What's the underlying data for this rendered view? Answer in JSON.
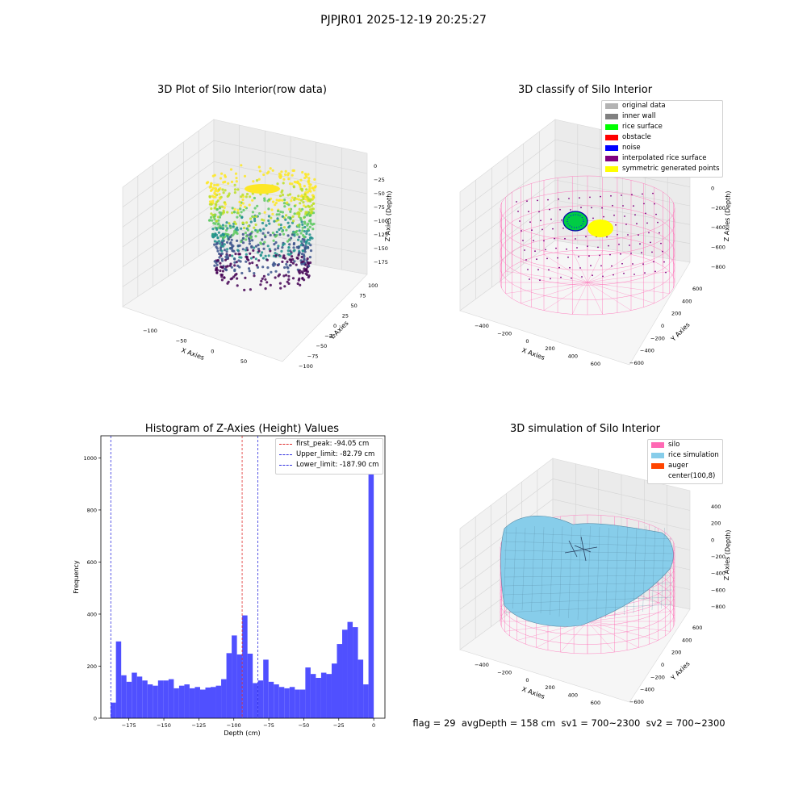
{
  "suptitle": "PJPJR01 2025-12-19 20:25:27",
  "footer": "flag = 29  avgDepth = 158 cm  sv1 = 700~2300  sv2 = 700~2300",
  "colors": {
    "hist_bar": "#5050ff",
    "first_peak": "#e03030",
    "limit": "#3030e0",
    "silo_wire": "#ff69b4",
    "rice_surface": "#87cdea",
    "original_data": "#b3b3b3",
    "inner_wall": "#808080",
    "rice_green": "#00ff00",
    "obstacle": "#ff0000",
    "noise": "#0000ff",
    "interp": "#800080",
    "symmetric": "#ffff00",
    "auger": "#ff4500"
  },
  "chart_data": [
    {
      "type": "scatter",
      "title": "3D Plot of Silo Interior(row data)",
      "xlabel": "X Axies",
      "ylabel": "Y Axies",
      "zlabel": "Z Axies (Depth)",
      "xticks": [
        "−100",
        "−50",
        "0",
        "50"
      ],
      "yticks": [
        "100",
        "75",
        "50",
        "25",
        "0",
        "−25",
        "−50",
        "−75",
        "−100"
      ],
      "zticks": [
        "0",
        "−25",
        "−50",
        "−75",
        "−100",
        "−125",
        "−150",
        "−175"
      ],
      "xlim": [
        -130,
        80
      ],
      "ylim": [
        -100,
        100
      ],
      "zlim": [
        -190,
        5
      ],
      "colormap": "viridis"
    },
    {
      "type": "scatter",
      "title": "3D classify of Silo Interior",
      "xlabel": "X Axies",
      "ylabel": "Y Axies",
      "zlabel": "Z Axies (Depth)",
      "xticks": [
        "−400",
        "−200",
        "0",
        "200",
        "400",
        "600"
      ],
      "yticks": [
        "600",
        "400",
        "200",
        "0",
        "−200",
        "−400",
        "−600"
      ],
      "zticks": [
        "200",
        "0",
        "−200",
        "−400",
        "−600",
        "−800"
      ],
      "legend": [
        "original data",
        "inner wall",
        "rice surface",
        "obstacle",
        "noise",
        "interpolated rice surface",
        "symmetric generated points"
      ],
      "legend_position": "top-right"
    },
    {
      "type": "bar",
      "title": "Histogram of Z-Axies (Height) Values",
      "xlabel": "Depth (cm)",
      "ylabel": "Frequency",
      "xlim": [
        -195,
        8
      ],
      "ylim": [
        0,
        1085
      ],
      "xticks": [
        -175,
        -150,
        -125,
        -100,
        -75,
        -50,
        -25,
        0
      ],
      "xtick_labels": [
        "−175",
        "−150",
        "−125",
        "−100",
        "−75",
        "−50",
        "−25",
        "0"
      ],
      "yticks": [
        0,
        200,
        400,
        600,
        800,
        1000
      ],
      "bin_start": -188,
      "bin_width": 3.76,
      "values": [
        60,
        295,
        165,
        140,
        175,
        160,
        145,
        130,
        125,
        145,
        145,
        150,
        115,
        125,
        130,
        115,
        120,
        110,
        118,
        120,
        125,
        150,
        250,
        318,
        245,
        395,
        248,
        135,
        145,
        225,
        140,
        130,
        120,
        115,
        120,
        110,
        110,
        195,
        170,
        155,
        175,
        170,
        210,
        285,
        340,
        370,
        350,
        225,
        130,
        1030
      ],
      "vlines": [
        {
          "x": -94.05,
          "label": "first_peak: -94.05 cm",
          "color": "#e03030"
        },
        {
          "x": -82.79,
          "label": "Upper_limit: -82.79 cm",
          "color": "#3030e0"
        },
        {
          "x": -187.9,
          "label": "Lower_limit: -187.90 cm",
          "color": "#3030e0"
        }
      ],
      "legend_position": "top-right"
    },
    {
      "type": "surface",
      "title": "3D simulation of Silo Interior",
      "xlabel": "X Axies",
      "ylabel": "Y Axies",
      "zlabel": "Z Axies (Depth)",
      "xticks": [
        "−400",
        "−200",
        "0",
        "200",
        "400",
        "600"
      ],
      "yticks": [
        "600",
        "400",
        "200",
        "0",
        "−200",
        "−400",
        "−600"
      ],
      "zticks": [
        "400",
        "200",
        "0",
        "−200",
        "−400",
        "−600",
        "−800"
      ],
      "legend": [
        "silo",
        "rice simulation",
        "auger",
        "center(100,8)"
      ],
      "legend_position": "top-right"
    }
  ]
}
